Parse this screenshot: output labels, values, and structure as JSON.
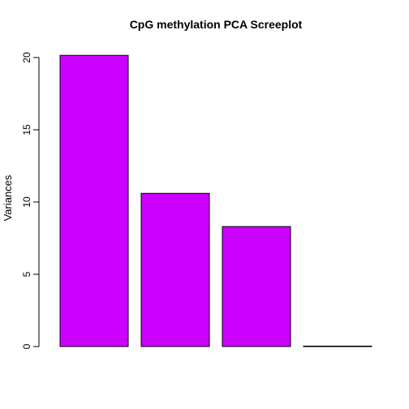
{
  "chart_data": {
    "type": "bar",
    "title": "CpG methylation PCA Screeplot",
    "xlabel": "",
    "ylabel": "Variances",
    "categories": [
      "",
      "",
      "",
      ""
    ],
    "values": [
      20.15,
      10.6,
      8.3,
      0.03
    ],
    "ylim": [
      0,
      20.5
    ],
    "yticks": [
      0,
      5,
      10,
      15,
      20
    ],
    "bar_color": "#CC00FF",
    "bar_border_color": "#000000",
    "grid": false,
    "legend": "none"
  }
}
